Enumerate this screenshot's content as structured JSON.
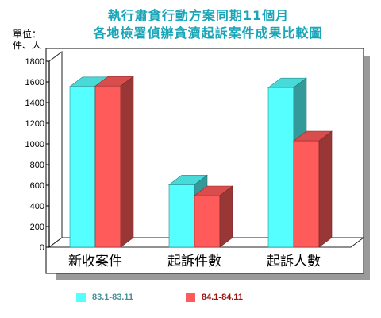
{
  "chart_data": {
    "type": "bar",
    "title": "執行肅貪行動方案同期11個月",
    "subtitle": "各地檢署偵辦貪瀆起訴案件成果比較圖",
    "ylabel": "單位：件、人",
    "categories": [
      "新收案件",
      "起訴件數",
      "起訴人數"
    ],
    "series": [
      {
        "name": "83.1-83.11",
        "color": "#55ffff",
        "values": [
          1555,
          605,
          1545
        ]
      },
      {
        "name": "84.1-84.11",
        "color": "#ff5b5b",
        "values": [
          1560,
          500,
          1030
        ]
      }
    ],
    "ylim": [
      0,
      1800
    ],
    "yticks": [
      0,
      200,
      400,
      600,
      800,
      1000,
      1200,
      1400,
      1600,
      1800
    ],
    "grid": false,
    "legend_position": "bottom"
  }
}
